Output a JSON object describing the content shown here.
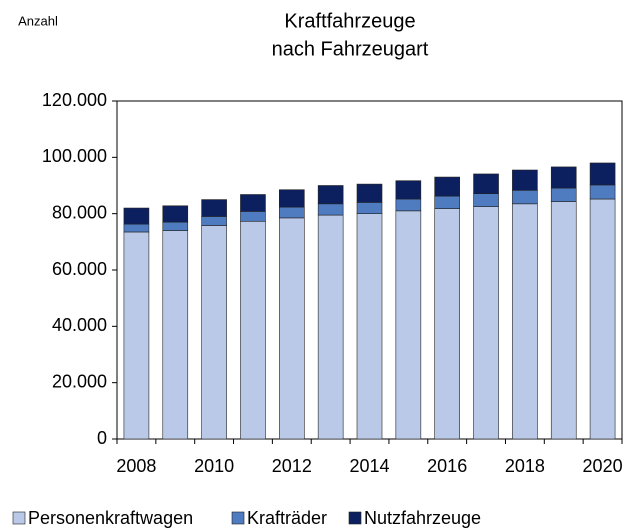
{
  "chart_data": {
    "type": "stacked_bar",
    "title": [
      "Kraftfahrzeuge",
      "nach Fahrzeugart"
    ],
    "y_label": "Anzahl",
    "categories": [
      "2008",
      null,
      "2010",
      null,
      "2012",
      null,
      "2014",
      null,
      "2016",
      null,
      "2018",
      null,
      "2020"
    ],
    "series": [
      {
        "name": "Personenkraftwagen",
        "color": "#b9c9e7",
        "values": [
          73500,
          74000,
          75800,
          77300,
          78500,
          79500,
          80000,
          81000,
          81800,
          82500,
          83500,
          84300,
          85200
        ]
      },
      {
        "name": "Krafträder",
        "color": "#4f7bc1",
        "values": [
          2800,
          3000,
          3200,
          3500,
          3800,
          4000,
          4000,
          4200,
          4400,
          4600,
          4800,
          4800,
          5000
        ]
      },
      {
        "name": "Nutzfahrzeuge",
        "color": "#0c1f5e",
        "values": [
          5700,
          5800,
          6000,
          6000,
          6200,
          6500,
          6500,
          6500,
          6800,
          7000,
          7200,
          7500,
          7800
        ]
      }
    ],
    "ylim": [
      0,
      120000
    ],
    "yticks": [
      0,
      {
        "value": 20000,
        "label": "20.000"
      },
      {
        "value": 40000,
        "label": "40.000"
      },
      {
        "value": 60000,
        "label": "60.000"
      },
      {
        "value": 80000,
        "label": "80.000"
      },
      {
        "value": 100000,
        "label": "100.000"
      },
      {
        "value": 120000,
        "label": "120.000"
      }
    ],
    "grid": false,
    "legend": "bottom"
  }
}
